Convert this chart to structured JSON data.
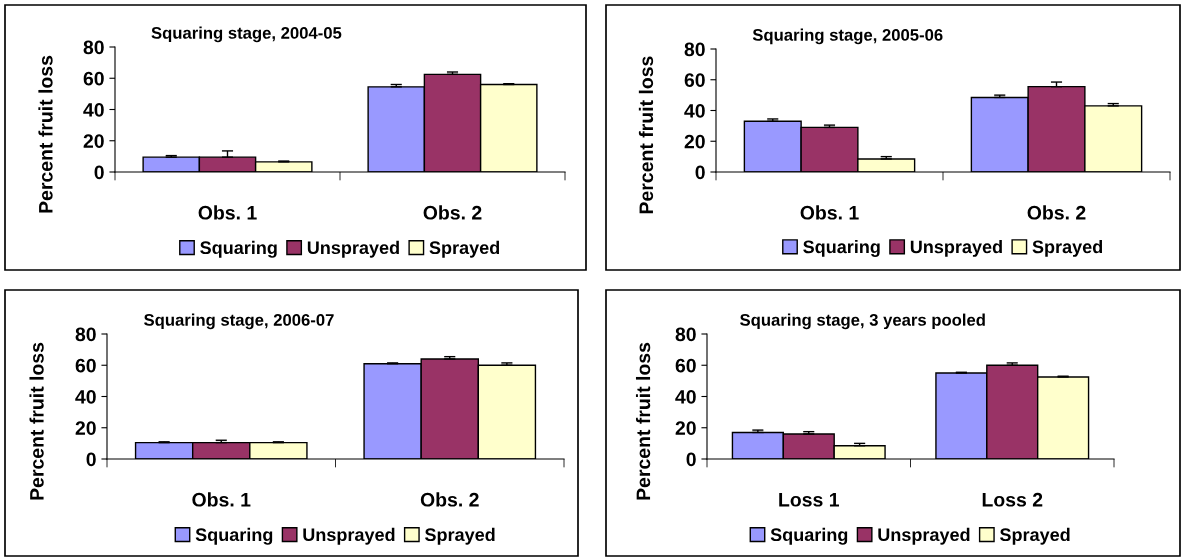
{
  "chart_data": [
    {
      "type": "bar",
      "title": "Squaring stage, 2004-05",
      "ylabel": "Percent fruit loss",
      "categories": [
        "Obs. 1",
        "Obs. 2"
      ],
      "ylim": [
        0,
        80
      ],
      "yticks": [
        0,
        20,
        40,
        60,
        80
      ],
      "grid": false,
      "legend": "bottom",
      "series": [
        {
          "name": "Squaring",
          "color": "#9999ff",
          "values": [
            9.5,
            54.5
          ],
          "errors": [
            [
              9.5,
              10.5
            ],
            [
              54.5,
              56
            ]
          ]
        },
        {
          "name": "Unsprayed",
          "color": "#993366",
          "values": [
            9.5,
            62.5
          ],
          "errors": [
            [
              9.5,
              13.5
            ],
            [
              62.5,
              64
            ]
          ]
        },
        {
          "name": "Sprayed",
          "color": "#ffffcc",
          "values": [
            6.5,
            56
          ],
          "errors": [
            [
              6.5,
              7
            ],
            [
              56,
              56.5
            ]
          ]
        }
      ]
    },
    {
      "type": "bar",
      "title": "Squaring stage, 2005-06",
      "ylabel": "Percent fruit loss",
      "categories": [
        "Obs. 1",
        "Obs. 2"
      ],
      "ylim": [
        0,
        80
      ],
      "yticks": [
        0,
        20,
        40,
        60,
        80
      ],
      "grid": false,
      "legend": "bottom",
      "series": [
        {
          "name": "Squaring",
          "color": "#9999ff",
          "values": [
            33,
            48.5
          ],
          "errors": [
            [
              33,
              34.5
            ],
            [
              48.5,
              50
            ]
          ]
        },
        {
          "name": "Unsprayed",
          "color": "#993366",
          "values": [
            29,
            55.5
          ],
          "errors": [
            [
              29,
              30.5
            ],
            [
              55.5,
              58.5
            ]
          ]
        },
        {
          "name": "Sprayed",
          "color": "#ffffcc",
          "values": [
            8.5,
            43
          ],
          "errors": [
            [
              8.5,
              10
            ],
            [
              43,
              44.5
            ]
          ]
        }
      ]
    },
    {
      "type": "bar",
      "title": "Squaring stage, 2006-07",
      "ylabel": "Percent fruit loss",
      "categories": [
        "Obs. 1",
        "Obs. 2"
      ],
      "ylim": [
        0,
        80
      ],
      "yticks": [
        0,
        20,
        40,
        60,
        80
      ],
      "grid": false,
      "legend": "bottom",
      "series": [
        {
          "name": "Squaring",
          "color": "#9999ff",
          "values": [
            10.5,
            61
          ],
          "errors": [
            [
              10.5,
              11
            ],
            [
              61,
              61.5
            ]
          ]
        },
        {
          "name": "Unsprayed",
          "color": "#993366",
          "values": [
            10.5,
            64
          ],
          "errors": [
            [
              10.5,
              12
            ],
            [
              64,
              65.5
            ]
          ]
        },
        {
          "name": "Sprayed",
          "color": "#ffffcc",
          "values": [
            10.5,
            60
          ],
          "errors": [
            [
              10.5,
              11
            ],
            [
              60,
              61.5
            ]
          ]
        }
      ]
    },
    {
      "type": "bar",
      "title": "Squaring stage, 3 years pooled",
      "ylabel": "Percent fruit loss",
      "categories": [
        "Loss 1",
        "Loss 2"
      ],
      "ylim": [
        0,
        80
      ],
      "yticks": [
        0,
        20,
        40,
        60,
        80
      ],
      "grid": false,
      "legend": "bottom",
      "series": [
        {
          "name": "Squaring",
          "color": "#9999ff",
          "values": [
            17,
            55
          ],
          "errors": [
            [
              17,
              18.5
            ],
            [
              55,
              55.5
            ]
          ]
        },
        {
          "name": "Unsprayed",
          "color": "#993366",
          "values": [
            16,
            60
          ],
          "errors": [
            [
              16,
              17.5
            ],
            [
              60,
              61.5
            ]
          ]
        },
        {
          "name": "Sprayed",
          "color": "#ffffcc",
          "values": [
            8.5,
            52.5
          ],
          "errors": [
            [
              8.5,
              10
            ],
            [
              52.5,
              53
            ]
          ]
        }
      ]
    }
  ]
}
